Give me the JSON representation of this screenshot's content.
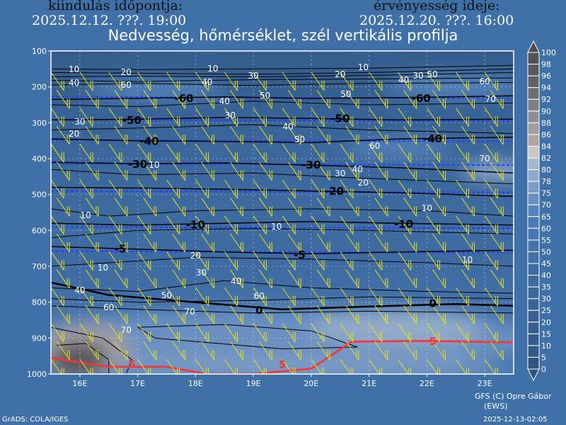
{
  "header": {
    "init_label": "kiindulás időpontja:",
    "init_time": "2025.12.12. ???. 19:00",
    "valid_label": "érvényesség ideje:",
    "valid_time": "2025.12.20. ???. 16:00",
    "title": "Nedvesség, hőmérséklet, szél vertikális profilja"
  },
  "footer": {
    "credit": "GFS (C) Opre Gábor",
    "credit2": "(EWS)",
    "grads": "GrADS: COLA/IGES",
    "timestamp": "2025-12-13-02:05"
  },
  "colors": {
    "temperature_contour": "#000000",
    "zero_plus_contour": "#ff3030",
    "dashed_lines": "#2040ff",
    "wind_barbs": "#e8e020",
    "rh_label": "#ffffff",
    "grid": "#dddddd"
  },
  "chart_data": {
    "type": "contour",
    "title": "Nedvesség, hőmérséklet, szél vertikális profilja",
    "x": {
      "ticks": [
        16,
        17,
        18,
        19,
        20,
        21,
        22,
        23
      ],
      "tick_labels": [
        "16E",
        "17E",
        "18E",
        "19E",
        "20E",
        "21E",
        "22E",
        "23E"
      ],
      "range": [
        15.5,
        23.5
      ]
    },
    "y": {
      "ticks": [
        100,
        200,
        300,
        400,
        500,
        600,
        700,
        800,
        900,
        1000
      ],
      "tick_labels": [
        "100",
        "200",
        "300",
        "400",
        "500",
        "600",
        "700",
        "800",
        "900",
        "1000"
      ],
      "range": [
        100,
        1000
      ],
      "inverted": true
    },
    "grid": true,
    "legend": {
      "placement": "right",
      "values": [
        100,
        98,
        96,
        94,
        92,
        90,
        88,
        86,
        84,
        82,
        80,
        78,
        75,
        70,
        65,
        60,
        55,
        50,
        45,
        40,
        35,
        30,
        25,
        20,
        15,
        10,
        5,
        0
      ],
      "colors": [
        "#4a4a50",
        "#515359",
        "#57595e",
        "#5e6266",
        "#6a6f72",
        "#7e7f82",
        "#918d96",
        "#a39ca0",
        "#b0a4a4",
        "#c8c8c8",
        "#a6b9cb",
        "#92aac8",
        "#7d9cc4",
        "#6a90c2",
        "#5483bb",
        "#4a7ab4",
        "#4676b0",
        "#4373ad",
        "#4170a8",
        "#3f6da3",
        "#3d6a9f",
        "#3b679b",
        "#396497",
        "#376193",
        "#355e8f",
        "#335b8b",
        "#315887",
        "#2f5483"
      ]
    },
    "humidity_regions": [
      {
        "lon": 19.5,
        "p": 150,
        "dlon": 5,
        "dp": 60,
        "rh": 15
      },
      {
        "lon": 17.3,
        "p": 210,
        "dlon": 1.2,
        "dp": 25,
        "rh": 65
      },
      {
        "lon": 22.5,
        "p": 200,
        "dlon": 1.2,
        "dp": 30,
        "rh": 65
      },
      {
        "lon": 21.5,
        "p": 370,
        "dlon": 0.9,
        "dp": 25,
        "rh": 65
      },
      {
        "lon": 23.2,
        "p": 435,
        "dlon": 0.6,
        "dp": 25,
        "rh": 78
      },
      {
        "lon": 19.5,
        "p": 900,
        "dlon": 4.5,
        "dp": 80,
        "rh": 70
      },
      {
        "lon": 21.5,
        "p": 870,
        "dlon": 1.5,
        "dp": 50,
        "rh": 78
      },
      {
        "lon": 16.1,
        "p": 940,
        "dlon": 0.8,
        "dp": 80,
        "rh": 86
      },
      {
        "lon": 16.0,
        "p": 960,
        "dlon": 0.5,
        "dp": 50,
        "rh": 96
      },
      {
        "lon": 19.8,
        "p": 980,
        "dlon": 3.5,
        "dp": 30,
        "rh": 75
      }
    ],
    "temperature_contours": [
      {
        "level": -60,
        "points": [
          [
            15.5,
            235
          ],
          [
            17,
            232
          ],
          [
            18.5,
            228
          ],
          [
            20,
            232
          ],
          [
            21.5,
            230
          ],
          [
            23.5,
            225
          ]
        ]
      },
      {
        "level": -50,
        "points": [
          [
            15.5,
            292
          ],
          [
            17,
            290
          ],
          [
            18.5,
            285
          ],
          [
            20,
            288
          ],
          [
            21.5,
            292
          ],
          [
            23.5,
            290
          ]
        ]
      },
      {
        "level": -40,
        "points": [
          [
            15.5,
            345
          ],
          [
            17,
            350
          ],
          [
            18.5,
            352
          ],
          [
            20,
            355
          ],
          [
            21.5,
            345
          ],
          [
            23.5,
            340
          ]
        ]
      },
      {
        "level": -30,
        "points": [
          [
            15.5,
            410
          ],
          [
            17,
            414
          ],
          [
            18.5,
            412
          ],
          [
            20,
            418
          ],
          [
            21.5,
            425
          ],
          [
            23.5,
            440
          ]
        ]
      },
      {
        "level": -20,
        "points": [
          [
            15.5,
            480
          ],
          [
            17,
            482
          ],
          [
            18.5,
            485
          ],
          [
            20,
            490
          ],
          [
            21.5,
            495
          ],
          [
            23.5,
            505
          ]
        ]
      },
      {
        "level": -10,
        "points": [
          [
            15.5,
            580
          ],
          [
            17,
            585
          ],
          [
            18.5,
            580
          ],
          [
            20,
            575
          ],
          [
            21.5,
            580
          ],
          [
            23.5,
            585
          ]
        ]
      },
      {
        "level": -5,
        "points": [
          [
            15.5,
            645
          ],
          [
            17,
            652
          ],
          [
            18.5,
            660
          ],
          [
            20,
            665
          ],
          [
            21.5,
            660
          ],
          [
            23.5,
            655
          ]
        ]
      },
      {
        "level": 0,
        "points": [
          [
            15.5,
            745
          ],
          [
            16.5,
            780
          ],
          [
            18,
            800
          ],
          [
            19.5,
            820
          ],
          [
            21,
            812
          ],
          [
            22.5,
            805
          ],
          [
            23.5,
            810
          ]
        ]
      },
      {
        "level": 5,
        "points": [
          [
            15.5,
            955
          ],
          [
            16.5,
            980
          ],
          [
            17.5,
            980
          ],
          [
            18.2,
            1000
          ],
          [
            19,
            1000
          ],
          [
            20,
            985
          ],
          [
            20.7,
            910
          ],
          [
            22,
            908
          ],
          [
            23.5,
            912
          ]
        ]
      }
    ],
    "temperature_labels": [
      {
        "text": "-60",
        "lon": 17.8,
        "p": 230
      },
      {
        "text": "-60",
        "lon": 21.9,
        "p": 230
      },
      {
        "text": "-50",
        "lon": 16.9,
        "p": 291
      },
      {
        "text": "-50",
        "lon": 20.5,
        "p": 287
      },
      {
        "text": "-40",
        "lon": 17.2,
        "p": 350
      },
      {
        "text": "-40",
        "lon": 22.1,
        "p": 343
      },
      {
        "text": "-30",
        "lon": 17.0,
        "p": 414
      },
      {
        "text": "-30",
        "lon": 20.0,
        "p": 416
      },
      {
        "text": "-20",
        "lon": 20.4,
        "p": 489
      },
      {
        "text": "-10",
        "lon": 18.0,
        "p": 583
      },
      {
        "text": "-10",
        "lon": 21.6,
        "p": 581
      },
      {
        "text": "-5",
        "lon": 16.7,
        "p": 650
      },
      {
        "text": "-5",
        "lon": 19.8,
        "p": 666
      },
      {
        "text": "0",
        "lon": 19.1,
        "p": 820
      },
      {
        "text": "0",
        "lon": 22.1,
        "p": 802
      },
      {
        "text": "5",
        "lon": 16.9,
        "p": 978
      },
      {
        "text": "5",
        "lon": 19.5,
        "p": 991
      },
      {
        "text": "5",
        "lon": 22.1,
        "p": 907
      }
    ],
    "humidity_contours": [
      {
        "points": [
          [
            15.5,
            150
          ],
          [
            17,
            152
          ],
          [
            19,
            150
          ],
          [
            21,
            148
          ],
          [
            23.5,
            140
          ]
        ]
      },
      {
        "points": [
          [
            15.5,
            160
          ],
          [
            17,
            162
          ],
          [
            19,
            165
          ],
          [
            21,
            160
          ],
          [
            23.5,
            150
          ]
        ]
      },
      {
        "points": [
          [
            15.5,
            172
          ],
          [
            17,
            170
          ],
          [
            19,
            172
          ],
          [
            21,
            168
          ],
          [
            23.5,
            160
          ]
        ]
      },
      {
        "points": [
          [
            15.5,
            182
          ],
          [
            17,
            185
          ],
          [
            19,
            180
          ],
          [
            21,
            178
          ],
          [
            23.5,
            175
          ]
        ]
      },
      {
        "points": [
          [
            15.5,
            195
          ],
          [
            17,
            190
          ],
          [
            19,
            196
          ],
          [
            21,
            190
          ],
          [
            23.5,
            188
          ]
        ]
      },
      {
        "points": [
          [
            15.5,
            250
          ],
          [
            17,
            255
          ],
          [
            19,
            240
          ],
          [
            21,
            250
          ],
          [
            23.5,
            245
          ]
        ]
      },
      {
        "points": [
          [
            15.5,
            320
          ],
          [
            17,
            315
          ],
          [
            19,
            305
          ],
          [
            21,
            320
          ],
          [
            23.5,
            330
          ]
        ]
      },
      {
        "points": [
          [
            15.5,
            430
          ],
          [
            17,
            445
          ],
          [
            19,
            440
          ],
          [
            21,
            455
          ],
          [
            23.5,
            470
          ]
        ]
      },
      {
        "points": [
          [
            15.5,
            540
          ],
          [
            16.5,
            560
          ],
          [
            18,
            545
          ],
          [
            20,
            540
          ],
          [
            22,
            545
          ],
          [
            23.5,
            560
          ]
        ]
      },
      {
        "points": [
          [
            15.5,
            620
          ],
          [
            17,
            600
          ],
          [
            19,
            595
          ],
          [
            21,
            600
          ],
          [
            23.5,
            610
          ]
        ]
      },
      {
        "points": [
          [
            15.5,
            700
          ],
          [
            16.5,
            690
          ],
          [
            18,
            675
          ],
          [
            20,
            680
          ],
          [
            22,
            690
          ],
          [
            23.5,
            700
          ]
        ]
      },
      {
        "points": [
          [
            15.5,
            760
          ],
          [
            17,
            770
          ],
          [
            18.5,
            740
          ],
          [
            20,
            760
          ],
          [
            22,
            770
          ],
          [
            23.5,
            775
          ]
        ]
      },
      {
        "points": [
          [
            15.5,
            790
          ],
          [
            17,
            800
          ],
          [
            19,
            795
          ],
          [
            21,
            785
          ],
          [
            23.5,
            790
          ]
        ]
      },
      {
        "points": [
          [
            15.5,
            810
          ],
          [
            17,
            820
          ],
          [
            19,
            830
          ],
          [
            21,
            825
          ],
          [
            23.5,
            830
          ]
        ]
      },
      {
        "points": [
          [
            17,
            870
          ],
          [
            18.5,
            862
          ],
          [
            20,
            880
          ],
          [
            20.8,
            925
          ],
          [
            19.5,
            930
          ],
          [
            17.3,
            900
          ],
          [
            17,
            870
          ]
        ]
      },
      {
        "points": [
          [
            15.5,
            870
          ],
          [
            16.4,
            900
          ],
          [
            16.9,
            960
          ],
          [
            16.8,
            1000
          ]
        ]
      },
      {
        "points": [
          [
            15.6,
            920
          ],
          [
            16.1,
            915
          ],
          [
            16.5,
            960
          ],
          [
            16.5,
            1000
          ]
        ]
      }
    ],
    "humidity_labels": [
      {
        "text": "10",
        "lon": 15.9,
        "p": 151
      },
      {
        "text": "20",
        "lon": 16.8,
        "p": 159
      },
      {
        "text": "10",
        "lon": 18.3,
        "p": 149
      },
      {
        "text": "30",
        "lon": 19.0,
        "p": 169
      },
      {
        "text": "20",
        "lon": 20.5,
        "p": 165
      },
      {
        "text": "10",
        "lon": 20.9,
        "p": 145
      },
      {
        "text": "40",
        "lon": 15.9,
        "p": 181
      },
      {
        "text": "60",
        "lon": 16.8,
        "p": 187
      },
      {
        "text": "40",
        "lon": 18.2,
        "p": 187
      },
      {
        "text": "40",
        "lon": 21.6,
        "p": 181
      },
      {
        "text": "30",
        "lon": 21.8,
        "p": 169
      },
      {
        "text": "50",
        "lon": 21.9,
        "p": 197
      },
      {
        "text": "60",
        "lon": 23.0,
        "p": 185
      },
      {
        "text": "40",
        "lon": 18.5,
        "p": 240
      },
      {
        "text": "50",
        "lon": 19.2,
        "p": 224
      },
      {
        "text": "50",
        "lon": 20.6,
        "p": 220
      },
      {
        "text": "70",
        "lon": 23.1,
        "p": 234
      },
      {
        "text": "30",
        "lon": 18.6,
        "p": 280
      },
      {
        "text": "30",
        "lon": 16.0,
        "p": 297
      },
      {
        "text": "20",
        "lon": 15.9,
        "p": 323
      },
      {
        "text": "40",
        "lon": 19.6,
        "p": 311
      },
      {
        "text": "50",
        "lon": 19.8,
        "p": 347
      },
      {
        "text": "60",
        "lon": 21.1,
        "p": 364
      },
      {
        "text": "70",
        "lon": 23.0,
        "p": 400
      },
      {
        "text": "10",
        "lon": 17.2,
        "p": 418
      },
      {
        "text": "30",
        "lon": 20.5,
        "p": 441
      },
      {
        "text": "40",
        "lon": 20.8,
        "p": 430
      },
      {
        "text": "20",
        "lon": 20.9,
        "p": 459
      },
      {
        "text": "10",
        "lon": 22.0,
        "p": 538
      },
      {
        "text": "10",
        "lon": 16.1,
        "p": 558
      },
      {
        "text": "10",
        "lon": 19.4,
        "p": 589
      },
      {
        "text": "20",
        "lon": 18.0,
        "p": 670
      },
      {
        "text": "10",
        "lon": 22.7,
        "p": 682
      },
      {
        "text": "10",
        "lon": 16.4,
        "p": 704
      },
      {
        "text": "30",
        "lon": 18.1,
        "p": 718
      },
      {
        "text": "40",
        "lon": 18.7,
        "p": 741
      },
      {
        "text": "50",
        "lon": 17.5,
        "p": 781
      },
      {
        "text": "60",
        "lon": 19.1,
        "p": 791
      },
      {
        "text": "40",
        "lon": 16.0,
        "p": 767
      },
      {
        "text": "60",
        "lon": 16.5,
        "p": 814
      },
      {
        "text": "70",
        "lon": 17.9,
        "p": 826
      },
      {
        "text": "70",
        "lon": 16.8,
        "p": 878
      }
    ],
    "dashed_lines": [
      228,
      291,
      348,
      414,
      490,
      590,
      658
    ],
    "wind_barbs": {
      "lons": [
        15.6,
        16.1,
        16.6,
        17.1,
        17.6,
        18.1,
        18.6,
        19.1,
        19.6,
        20.1,
        20.6,
        21.1,
        21.6,
        22.1,
        22.6,
        23.1
      ],
      "levels": [
        175,
        225,
        275,
        325,
        375,
        425,
        475,
        525,
        575,
        625,
        675,
        725,
        775,
        825,
        875,
        925,
        975
      ]
    }
  }
}
